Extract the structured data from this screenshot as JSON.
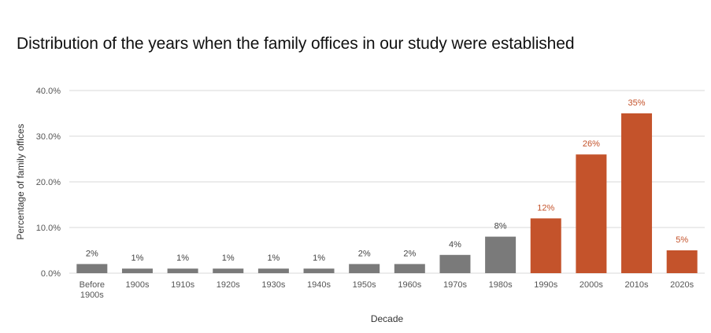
{
  "chart_data": {
    "type": "bar",
    "title": "Distribution of the years when the family offices in our study were established",
    "xlabel": "Decade",
    "ylabel": "Percentage of family offices",
    "ylim": [
      0,
      40
    ],
    "yticks": [
      "0.0%",
      "10.0%",
      "20.0%",
      "30.0%",
      "40.0%"
    ],
    "grid": true,
    "categories": [
      [
        "Before",
        "1900s"
      ],
      [
        "1900s"
      ],
      [
        "1910s"
      ],
      [
        "1920s"
      ],
      [
        "1930s"
      ],
      [
        "1940s"
      ],
      [
        "1950s"
      ],
      [
        "1960s"
      ],
      [
        "1970s"
      ],
      [
        "1980s"
      ],
      [
        "1990s"
      ],
      [
        "2000s"
      ],
      [
        "2010s"
      ],
      [
        "2020s"
      ]
    ],
    "values": [
      2,
      1,
      1,
      1,
      1,
      1,
      2,
      2,
      4,
      8,
      12,
      26,
      35,
      5
    ],
    "data_labels": [
      "2%",
      "1%",
      "1%",
      "1%",
      "1%",
      "1%",
      "2%",
      "2%",
      "4%",
      "8%",
      "12%",
      "26%",
      "35%",
      "5%"
    ],
    "highlighted": [
      false,
      false,
      false,
      false,
      false,
      false,
      false,
      false,
      false,
      false,
      true,
      true,
      true,
      true
    ],
    "colors": {
      "default": "#7a7a7a",
      "highlight": "#c4532b",
      "default_label": "#444444",
      "highlight_label": "#c4532b",
      "grid": "#d9d9d9"
    }
  }
}
